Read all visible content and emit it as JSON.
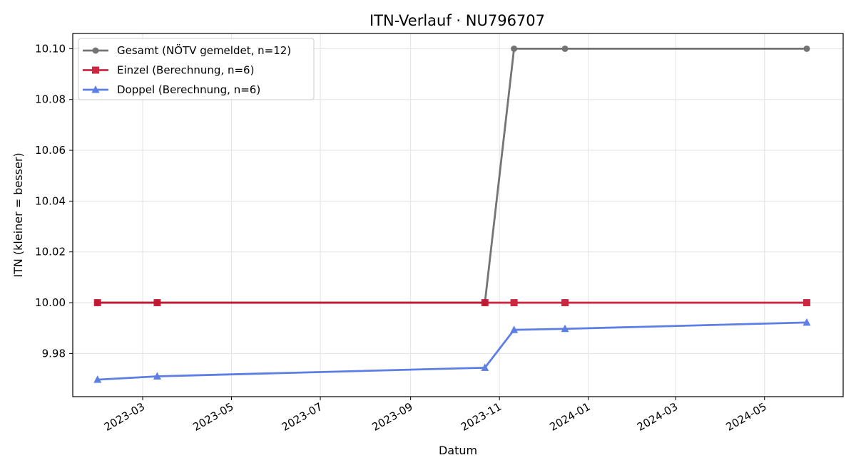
{
  "chart_data": {
    "type": "line",
    "title": "ITN-Verlauf · NU796707",
    "xlabel": "Datum",
    "ylabel": "ITN  (kleiner = besser)",
    "ylim": [
      9.963,
      10.106
    ],
    "xlim": [
      "2023-01-12",
      "2024-06-24"
    ],
    "yticks": [
      9.98,
      10.0,
      10.02,
      10.04,
      10.06,
      10.08,
      10.1
    ],
    "ytick_labels": [
      "9.98",
      "10.00",
      "10.02",
      "10.04",
      "10.06",
      "10.08",
      "10.10"
    ],
    "xticks": [
      "2023-03-01",
      "2023-05-01",
      "2023-07-01",
      "2023-09-01",
      "2023-11-01",
      "2024-01-01",
      "2024-03-01",
      "2024-05-01"
    ],
    "xtick_labels": [
      "2023-03",
      "2023-05",
      "2023-07",
      "2023-09",
      "2023-11",
      "2024-01",
      "2024-03",
      "2024-05"
    ],
    "grid": true,
    "legend_position": "top-left",
    "series": [
      {
        "name": "Gesamt (NÖTV gemeldet, n=12)",
        "color": "#404040",
        "marker": "circle",
        "points": [
          {
            "x": "2023-01-29",
            "y": 10.0
          },
          {
            "x": "2023-03-11",
            "y": 10.0
          },
          {
            "x": "2023-10-22",
            "y": 10.0
          },
          {
            "x": "2023-11-11",
            "y": 10.1
          },
          {
            "x": "2023-12-16",
            "y": 10.1
          },
          {
            "x": "2024-05-30",
            "y": 10.1
          }
        ]
      },
      {
        "name": "Einzel (Berechnung, n=6)",
        "color": "#c8102e",
        "marker": "square",
        "points": [
          {
            "x": "2023-01-29",
            "y": 10.0
          },
          {
            "x": "2023-03-11",
            "y": 10.0
          },
          {
            "x": "2023-10-22",
            "y": 10.0
          },
          {
            "x": "2023-11-11",
            "y": 10.0
          },
          {
            "x": "2023-12-16",
            "y": 10.0
          },
          {
            "x": "2024-05-30",
            "y": 10.0
          }
        ]
      },
      {
        "name": "Doppel (Berechnung, n=6)",
        "color": "#4169e1",
        "marker": "triangle",
        "points": [
          {
            "x": "2023-01-29",
            "y": 9.9697
          },
          {
            "x": "2023-03-11",
            "y": 9.971
          },
          {
            "x": "2023-10-22",
            "y": 9.9744
          },
          {
            "x": "2023-11-11",
            "y": 9.9893
          },
          {
            "x": "2023-12-16",
            "y": 9.9897
          },
          {
            "x": "2024-05-30",
            "y": 9.9922
          }
        ]
      }
    ]
  }
}
